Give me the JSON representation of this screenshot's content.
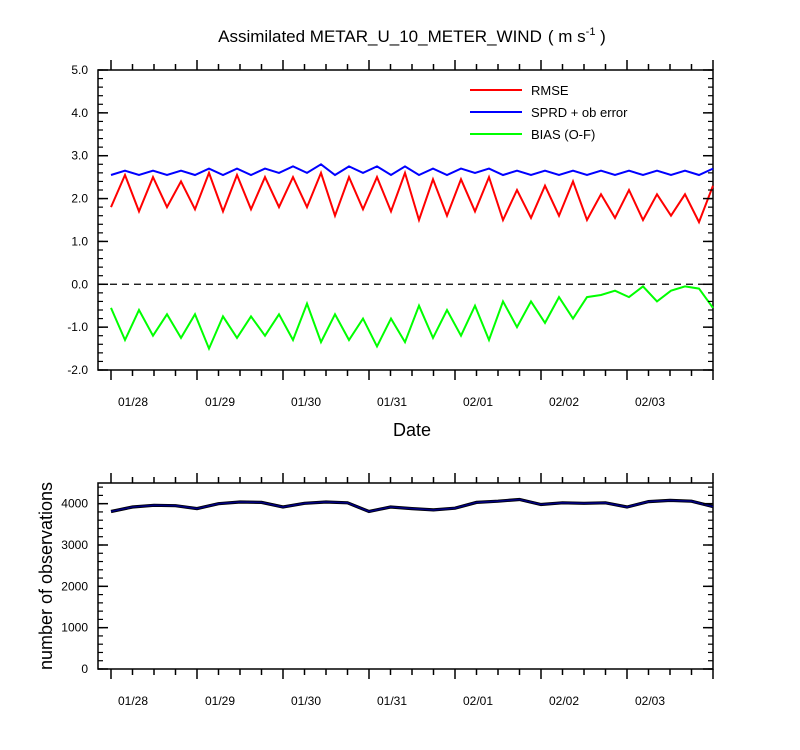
{
  "title": {
    "main": "Assimilated METAR_U_10_METER_WIND",
    "units_prefix": "( m s",
    "units_exp": "-1",
    "units_suffix": " )"
  },
  "chart_data": [
    {
      "type": "line",
      "xlabel": "Date",
      "ylabel": "",
      "ylim": [
        -2.0,
        5.0
      ],
      "yticks": [
        "5.0",
        "4.0",
        "3.0",
        "2.0",
        "1.0",
        "0.0",
        "-1.0",
        "-2.0"
      ],
      "x_tick_labels": [
        "01/28",
        "01/29",
        "01/30",
        "01/31",
        "02/01",
        "02/02",
        "02/03"
      ],
      "zero_line": "dashed",
      "legend": "top-right",
      "series": [
        {
          "name": "RMSE",
          "color": "#ff0000",
          "values": [
            1.8,
            2.55,
            1.7,
            2.5,
            1.8,
            2.4,
            1.75,
            2.6,
            1.7,
            2.55,
            1.75,
            2.5,
            1.8,
            2.5,
            1.8,
            2.6,
            1.6,
            2.5,
            1.75,
            2.5,
            1.7,
            2.6,
            1.5,
            2.45,
            1.6,
            2.45,
            1.7,
            2.5,
            1.5,
            2.2,
            1.55,
            2.3,
            1.6,
            2.4,
            1.5,
            2.1,
            1.55,
            2.2,
            1.5,
            2.1,
            1.6,
            2.1,
            1.45,
            2.3
          ]
        },
        {
          "name": "SPRD + ob error",
          "color": "#0000ff",
          "values": [
            2.55,
            2.65,
            2.55,
            2.65,
            2.55,
            2.65,
            2.55,
            2.7,
            2.55,
            2.7,
            2.55,
            2.7,
            2.6,
            2.75,
            2.6,
            2.8,
            2.55,
            2.75,
            2.6,
            2.75,
            2.55,
            2.75,
            2.55,
            2.7,
            2.55,
            2.7,
            2.6,
            2.7,
            2.55,
            2.65,
            2.55,
            2.65,
            2.55,
            2.65,
            2.55,
            2.65,
            2.55,
            2.65,
            2.55,
            2.65,
            2.55,
            2.65,
            2.55,
            2.7
          ]
        },
        {
          "name": "BIAS (O-F)",
          "color": "#00ff00",
          "values": [
            -0.55,
            -1.3,
            -0.6,
            -1.2,
            -0.7,
            -1.25,
            -0.7,
            -1.5,
            -0.75,
            -1.25,
            -0.75,
            -1.2,
            -0.7,
            -1.3,
            -0.45,
            -1.35,
            -0.7,
            -1.3,
            -0.8,
            -1.45,
            -0.8,
            -1.35,
            -0.5,
            -1.25,
            -0.6,
            -1.2,
            -0.5,
            -1.3,
            -0.4,
            -1.0,
            -0.4,
            -0.9,
            -0.3,
            -0.8,
            -0.3,
            -0.25,
            -0.15,
            -0.3,
            -0.05,
            -0.4,
            -0.15,
            -0.05,
            -0.1,
            -0.55
          ]
        }
      ]
    },
    {
      "type": "line",
      "xlabel": "",
      "ylabel": "number of observations",
      "ylim": [
        0,
        4500
      ],
      "yticks": [
        "4000",
        "3000",
        "2000",
        "1000",
        "0"
      ],
      "x_tick_labels": [
        "01/28",
        "01/29",
        "01/30",
        "01/31",
        "02/01",
        "02/02",
        "02/03"
      ],
      "series": [
        {
          "color": "#000080",
          "values": [
            3810,
            3920,
            3960,
            3950,
            3880,
            4000,
            4040,
            4030,
            3920,
            4010,
            4040,
            4020,
            3810,
            3920,
            3880,
            3850,
            3890,
            4030,
            4060,
            4100,
            3980,
            4020,
            4010,
            4020,
            3920,
            4050,
            4080,
            4060,
            3930
          ]
        }
      ]
    }
  ]
}
